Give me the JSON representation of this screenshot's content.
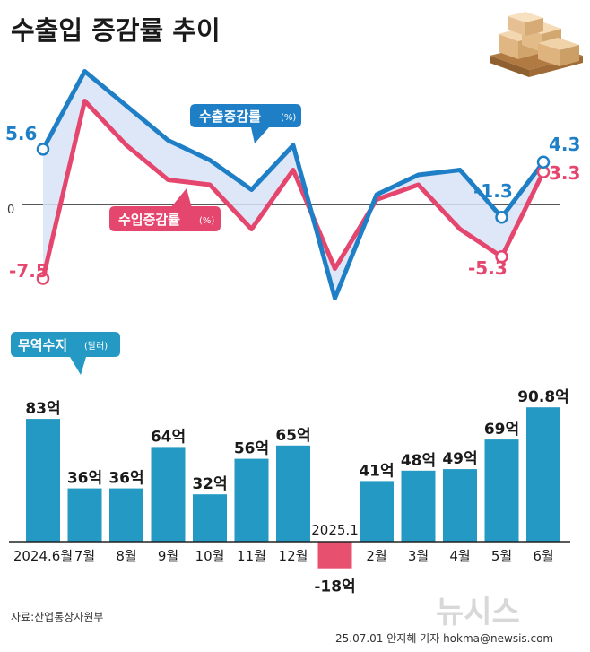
{
  "title": "수출입 증감률 추이",
  "line_section": {
    "zero_label": "0",
    "export_legend": "수출증감률",
    "export_unit": "(%)",
    "import_legend": "수입증감률",
    "import_unit": "(%)",
    "labels": {
      "export_first": "5.6",
      "import_first": "-7.5",
      "export_may": "-1.3",
      "import_may": "-5.3",
      "export_last": "4.3",
      "import_last": "3.3"
    }
  },
  "bar_section": {
    "title": "무역수지",
    "unit": "(달러)"
  },
  "source": "자료:산업통상자원부",
  "credit": "25.07.01 안지혜 기자 hokma@newsis.com",
  "logo": "뉴시스",
  "colors": {
    "export": "#1f7fc6",
    "import": "#e5466e",
    "bar": "#2399c3",
    "negative_bar": "#e8506f",
    "fill": "#d8e3f6"
  },
  "chart_data": [
    {
      "type": "line",
      "x": [
        "2024.6",
        "7",
        "8",
        "9",
        "10",
        "11",
        "12",
        "2025.1",
        "2",
        "3",
        "4",
        "5",
        "6"
      ],
      "series": [
        {
          "name": "수출증감률",
          "unit": "%",
          "values": [
            5.6,
            13.5,
            10.0,
            6.5,
            4.5,
            1.5,
            6.0,
            -9.5,
            1.0,
            3.0,
            3.5,
            -1.3,
            4.3
          ]
        },
        {
          "name": "수입증감률",
          "unit": "%",
          "values": [
            -7.5,
            10.5,
            6.0,
            2.5,
            2.0,
            -2.5,
            3.5,
            -6.5,
            0.5,
            2.0,
            -2.5,
            -5.3,
            3.3
          ]
        }
      ]
    },
    {
      "type": "bar",
      "title": "무역수지",
      "unit": "(달러)",
      "categories": [
        "2024.6월",
        "7월",
        "8월",
        "9월",
        "10월",
        "11월",
        "12월",
        "2025.1",
        "2월",
        "3월",
        "4월",
        "5월",
        "6월"
      ],
      "values": [
        83,
        36,
        36,
        64,
        32,
        56,
        65,
        -18,
        41,
        48,
        49,
        69,
        90.8
      ],
      "value_labels": [
        "83억",
        "36억",
        "36억",
        "64억",
        "32억",
        "56억",
        "65억",
        "-18억",
        "41억",
        "48억",
        "49억",
        "69억",
        "90.8억"
      ]
    }
  ]
}
